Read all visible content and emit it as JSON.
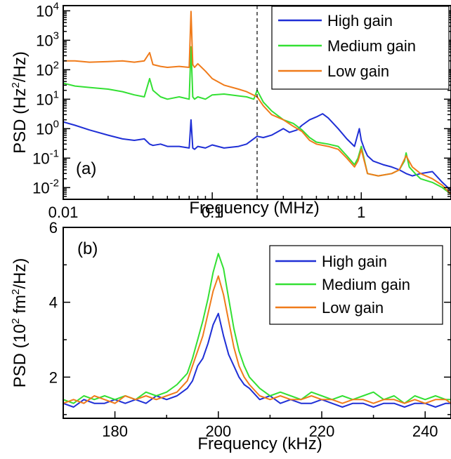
{
  "colors": {
    "high": "#1f2fd6",
    "medium": "#33e033",
    "low": "#f07b1a"
  },
  "chart_data": [
    {
      "type": "line",
      "panel_label": "(a)",
      "xlabel": "Frequency (MHz)",
      "ylabel_main": "PSD (Hz",
      "ylabel_sup": "2",
      "ylabel_tail": "/Hz)",
      "xscale": "log",
      "yscale": "log",
      "xlim": [
        0.01,
        4
      ],
      "ylim": [
        0.004,
        15000
      ],
      "xticks": [
        {
          "value": 0.01,
          "label": "0.01"
        },
        {
          "value": 0.1,
          "label": "0.1"
        },
        {
          "value": 1,
          "label": "1"
        }
      ],
      "yticks": [
        {
          "value": 0.01,
          "base": "10",
          "exp": "-2"
        },
        {
          "value": 0.1,
          "base": "10",
          "exp": "-1"
        },
        {
          "value": 1,
          "base": "10",
          "exp": "0"
        },
        {
          "value": 10,
          "base": "10",
          "exp": "1"
        },
        {
          "value": 100,
          "base": "10",
          "exp": "2"
        },
        {
          "value": 1000,
          "base": "10",
          "exp": "3"
        },
        {
          "value": 10000,
          "base": "10",
          "exp": "4"
        }
      ],
      "vline_x": 0.2,
      "legend_position": "top-right",
      "series": [
        {
          "name": "High gain",
          "color_key": "high",
          "x": [
            0.01,
            0.012,
            0.015,
            0.02,
            0.025,
            0.03,
            0.035,
            0.038,
            0.04,
            0.045,
            0.05,
            0.06,
            0.07,
            0.072,
            0.074,
            0.076,
            0.08,
            0.09,
            0.1,
            0.12,
            0.15,
            0.17,
            0.2,
            0.22,
            0.25,
            0.3,
            0.33,
            0.37,
            0.4,
            0.45,
            0.5,
            0.55,
            0.6,
            0.7,
            0.8,
            0.9,
            0.97,
            1.0,
            1.05,
            1.1,
            1.2,
            1.4,
            1.6,
            1.8,
            2.0,
            2.2,
            2.5,
            3.0,
            3.5,
            4.0
          ],
          "y": [
            1.7,
            1.3,
            0.9,
            0.6,
            0.45,
            0.4,
            0.45,
            0.3,
            0.27,
            0.3,
            0.25,
            0.25,
            0.22,
            2.0,
            0.22,
            0.2,
            0.25,
            0.22,
            0.28,
            0.22,
            0.25,
            0.3,
            0.55,
            0.5,
            0.6,
            1.0,
            0.75,
            0.9,
            1.3,
            2.0,
            2.5,
            3.2,
            2.3,
            1.0,
            0.45,
            0.25,
            1.0,
            0.4,
            0.2,
            0.12,
            0.08,
            0.06,
            0.05,
            0.04,
            0.03,
            0.025,
            0.03,
            0.035,
            0.015,
            0.008
          ]
        },
        {
          "name": "Medium gain",
          "color_key": "medium",
          "x": [
            0.01,
            0.012,
            0.015,
            0.02,
            0.025,
            0.03,
            0.035,
            0.038,
            0.04,
            0.045,
            0.05,
            0.06,
            0.07,
            0.072,
            0.074,
            0.076,
            0.08,
            0.09,
            0.1,
            0.12,
            0.15,
            0.17,
            0.19,
            0.2,
            0.22,
            0.25,
            0.3,
            0.35,
            0.4,
            0.45,
            0.5,
            0.6,
            0.7,
            0.8,
            0.9,
            0.95,
            1.0,
            1.1,
            1.3,
            1.6,
            1.8,
            1.95,
            2.0,
            2.1,
            2.3,
            2.5,
            3.0,
            3.5,
            4.0
          ],
          "y": [
            35,
            28,
            25,
            22,
            18,
            14,
            12,
            50,
            20,
            12,
            10,
            12,
            10,
            600,
            12,
            10,
            12,
            10,
            14,
            15,
            13,
            12,
            10,
            20,
            8,
            4,
            2.0,
            1.5,
            0.9,
            0.5,
            0.35,
            0.3,
            0.25,
            0.12,
            0.06,
            0.1,
            0.25,
            0.03,
            0.025,
            0.03,
            0.04,
            0.08,
            0.15,
            0.05,
            0.03,
            0.02,
            0.015,
            0.01,
            0.006
          ]
        },
        {
          "name": "Low gain",
          "color_key": "low",
          "x": [
            0.01,
            0.012,
            0.015,
            0.02,
            0.025,
            0.03,
            0.035,
            0.038,
            0.04,
            0.045,
            0.05,
            0.06,
            0.07,
            0.072,
            0.074,
            0.076,
            0.08,
            0.09,
            0.1,
            0.12,
            0.15,
            0.17,
            0.2,
            0.22,
            0.25,
            0.3,
            0.35,
            0.4,
            0.45,
            0.5,
            0.6,
            0.7,
            0.8,
            0.9,
            0.95,
            1.0,
            1.1,
            1.3,
            1.6,
            1.8,
            2.0,
            2.2,
            2.5,
            3.0,
            3.5,
            4.0
          ],
          "y": [
            200,
            200,
            180,
            190,
            200,
            180,
            200,
            380,
            150,
            130,
            120,
            130,
            120,
            9500,
            150,
            120,
            160,
            90,
            50,
            30,
            22,
            18,
            12,
            6,
            3.0,
            2.0,
            1.2,
            0.8,
            0.4,
            0.3,
            0.25,
            0.2,
            0.1,
            0.05,
            0.08,
            0.2,
            0.03,
            0.025,
            0.03,
            0.04,
            0.12,
            0.05,
            0.03,
            0.02,
            0.012,
            0.006
          ]
        }
      ]
    },
    {
      "type": "line",
      "panel_label": "(b)",
      "xlabel": "Frequency (kHz)",
      "ylabel_main": "PSD (10",
      "ylabel_sup": "2",
      "ylabel_mid": " fm",
      "ylabel_sup2": "2",
      "ylabel_tail": "/Hz)",
      "xlim": [
        170,
        245
      ],
      "ylim": [
        0.9,
        6
      ],
      "xticks": [
        {
          "value": 180,
          "label": "180"
        },
        {
          "value": 200,
          "label": "200"
        },
        {
          "value": 220,
          "label": "220"
        },
        {
          "value": 240,
          "label": "240"
        }
      ],
      "yticks": [
        {
          "value": 2,
          "label": "2"
        },
        {
          "value": 4,
          "label": "4"
        },
        {
          "value": 6,
          "label": "6"
        }
      ],
      "legend_position": "top-right",
      "series": [
        {
          "name": "High gain",
          "color_key": "high",
          "x": [
            170,
            172,
            174,
            176,
            178,
            180,
            182,
            184,
            186,
            188,
            190,
            192,
            194,
            195,
            196,
            197,
            198,
            199,
            200,
            201,
            202,
            203,
            204,
            205,
            206,
            208,
            210,
            212,
            214,
            216,
            218,
            220,
            222,
            224,
            226,
            228,
            230,
            232,
            234,
            236,
            238,
            240,
            242,
            244,
            245
          ],
          "y": [
            1.3,
            1.2,
            1.4,
            1.3,
            1.3,
            1.4,
            1.3,
            1.4,
            1.3,
            1.5,
            1.4,
            1.5,
            1.7,
            1.9,
            2.3,
            2.5,
            2.9,
            3.4,
            3.7,
            3.1,
            2.6,
            2.3,
            2.0,
            1.8,
            1.7,
            1.4,
            1.5,
            1.3,
            1.4,
            1.3,
            1.3,
            1.4,
            1.3,
            1.2,
            1.3,
            1.3,
            1.2,
            1.3,
            1.3,
            1.2,
            1.3,
            1.3,
            1.2,
            1.3,
            1.3
          ]
        },
        {
          "name": "Medium gain",
          "color_key": "medium",
          "x": [
            170,
            172,
            174,
            176,
            178,
            180,
            182,
            184,
            186,
            188,
            190,
            192,
            194,
            195,
            196,
            197,
            198,
            199,
            200,
            201,
            202,
            203,
            204,
            205,
            206,
            208,
            210,
            212,
            214,
            216,
            218,
            220,
            222,
            224,
            226,
            228,
            230,
            232,
            234,
            236,
            238,
            240,
            242,
            244,
            245
          ],
          "y": [
            1.4,
            1.3,
            1.5,
            1.4,
            1.5,
            1.4,
            1.5,
            1.4,
            1.6,
            1.5,
            1.6,
            1.8,
            2.1,
            2.5,
            3.0,
            3.5,
            4.1,
            4.8,
            5.3,
            4.9,
            4.1,
            3.3,
            2.7,
            2.3,
            2.0,
            1.7,
            1.5,
            1.6,
            1.5,
            1.4,
            1.6,
            1.5,
            1.4,
            1.5,
            1.4,
            1.5,
            1.6,
            1.4,
            1.5,
            1.3,
            1.5,
            1.4,
            1.5,
            1.4,
            1.4
          ]
        },
        {
          "name": "Low gain",
          "color_key": "low",
          "x": [
            170,
            172,
            174,
            176,
            178,
            180,
            182,
            184,
            186,
            188,
            190,
            192,
            194,
            195,
            196,
            197,
            198,
            199,
            200,
            201,
            202,
            203,
            204,
            205,
            206,
            208,
            210,
            212,
            214,
            216,
            218,
            220,
            222,
            224,
            226,
            228,
            230,
            232,
            234,
            236,
            238,
            240,
            242,
            244,
            245
          ],
          "y": [
            1.3,
            1.4,
            1.3,
            1.5,
            1.4,
            1.3,
            1.5,
            1.4,
            1.5,
            1.4,
            1.5,
            1.6,
            1.9,
            2.3,
            2.7,
            3.1,
            3.7,
            4.3,
            4.7,
            4.2,
            3.5,
            2.8,
            2.3,
            2.0,
            1.8,
            1.5,
            1.4,
            1.5,
            1.4,
            1.4,
            1.5,
            1.4,
            1.4,
            1.3,
            1.4,
            1.4,
            1.3,
            1.4,
            1.4,
            1.3,
            1.4,
            1.3,
            1.4,
            1.4,
            1.3
          ]
        }
      ]
    }
  ]
}
